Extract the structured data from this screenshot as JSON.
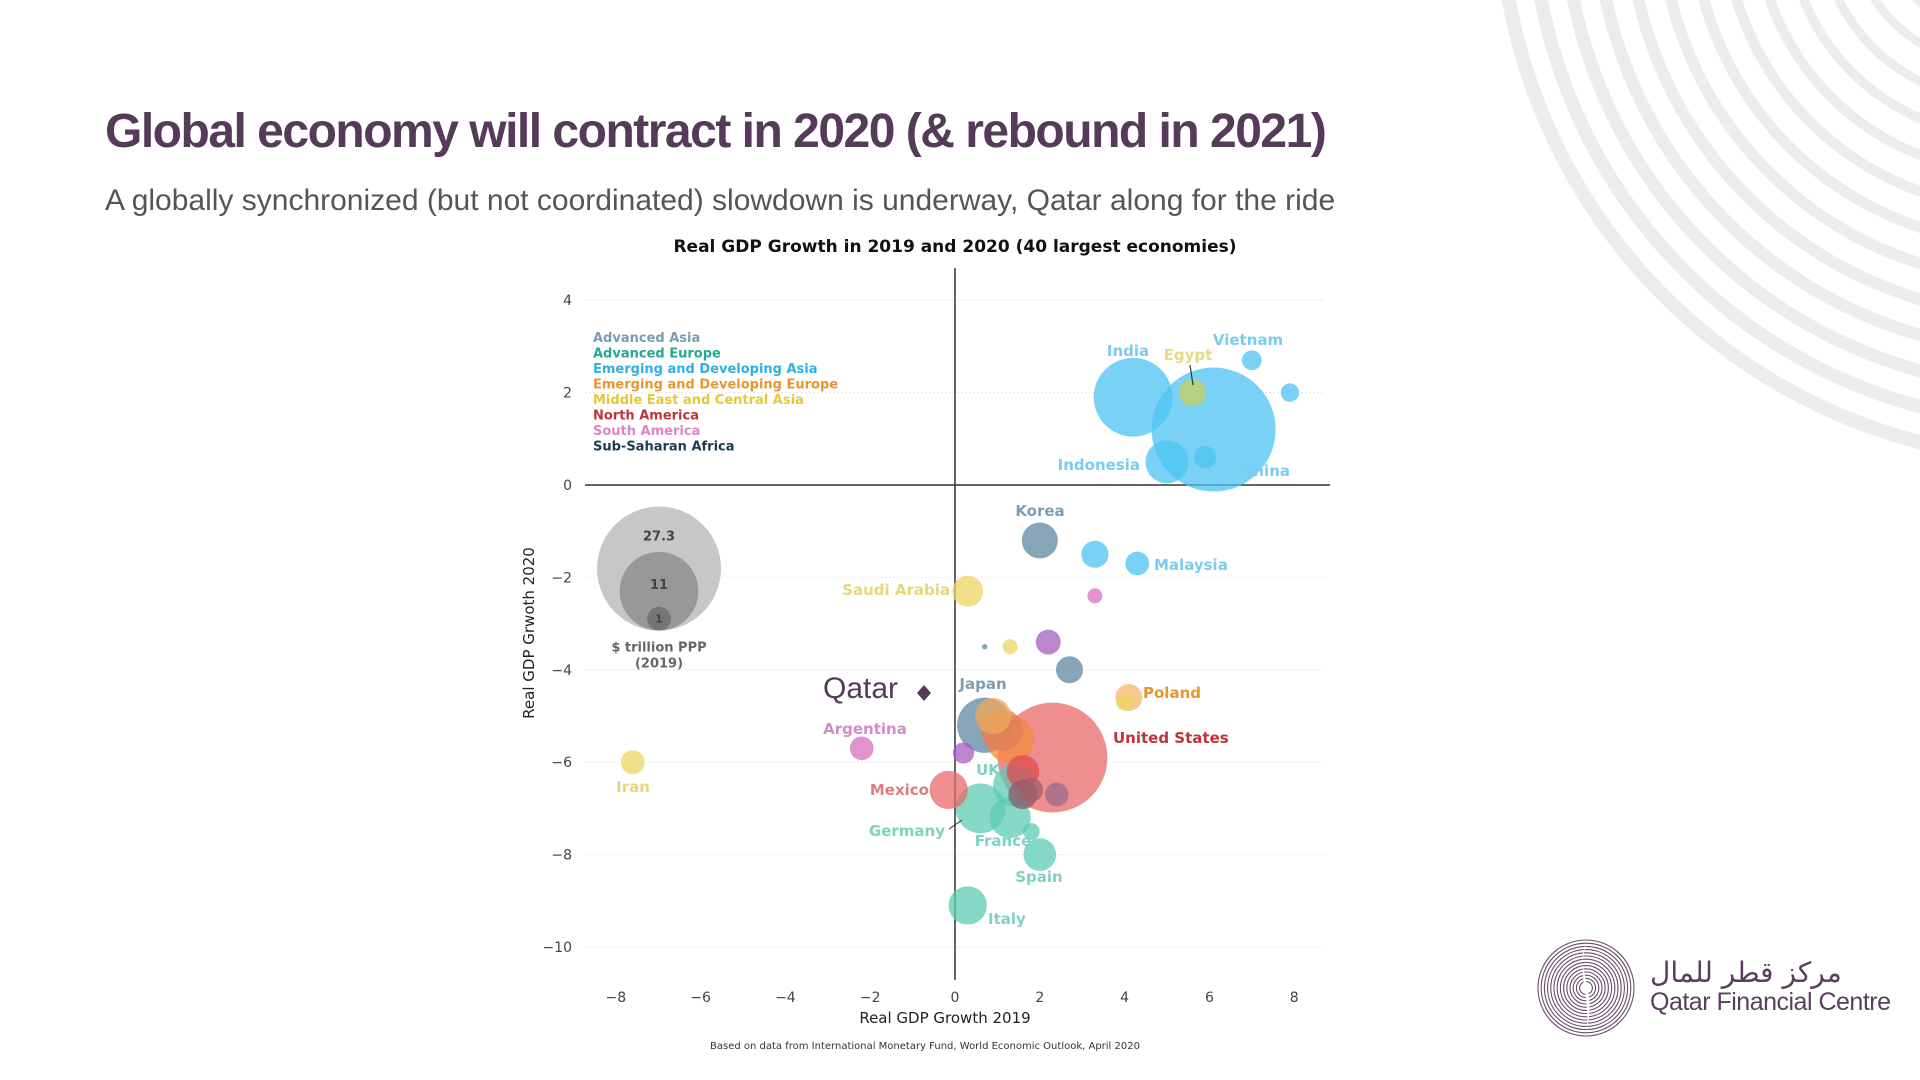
{
  "slide": {
    "title": "Global economy will contract in 2020 (& rebound in 2021)",
    "subtitle": "A globally synchronized (but not coordinated) slowdown is underway, Qatar along for the ride",
    "source": "Based on data from International Monetary Fund, World Economic Outlook, April 2020",
    "logo": {
      "arabic": "مركز قطر للمال",
      "english": "Qatar Financial Centre",
      "color": "#5a3e5d"
    }
  },
  "chart_data": {
    "type": "scatter",
    "title": "Real GDP Growth in 2019 and 2020 (40 largest economies)",
    "xlabel": "Real GDP Growth 2019",
    "ylabel": "Real GDP Grwoth 2020",
    "xlim": [
      -8.5,
      9
    ],
    "ylim": [
      -10.5,
      4.5
    ],
    "xticks": [
      -8,
      -6,
      -4,
      -2,
      0,
      2,
      4,
      6,
      8
    ],
    "yticks": [
      4,
      2,
      0,
      -2,
      -4,
      -6,
      -8,
      -10
    ],
    "tick_labels_x": [
      "−8",
      "−6",
      "−4",
      "−2",
      "0",
      "2",
      "4",
      "6",
      "8"
    ],
    "tick_labels_y": [
      "4",
      "2",
      "0",
      "−2",
      "−4",
      "−6",
      "−8",
      "−10"
    ],
    "grid": "horizontal dotted",
    "legend": {
      "placement": "top-left",
      "entries": [
        {
          "name": "Advanced Asia",
          "color": "#7b9bb0"
        },
        {
          "name": "Advanced Europe",
          "color": "#22a88f"
        },
        {
          "name": "Emerging and Developing Asia",
          "color": "#2fb0e0"
        },
        {
          "name": "Emerging and Developing Europe",
          "color": "#e8952e"
        },
        {
          "name": "Middle East and Central Asia",
          "color": "#e3c83a"
        },
        {
          "name": "North America",
          "color": "#c0333b"
        },
        {
          "name": "South America",
          "color": "#dc85c8"
        },
        {
          "name": "Sub-Saharan Africa",
          "color": "#1c3c4e"
        }
      ]
    },
    "size_legend": {
      "values": [
        27.3,
        11,
        1
      ],
      "labels": [
        "27.3",
        "11",
        "1"
      ],
      "caption_line1": "$ trillion PPP",
      "caption_line2": "(2019)"
    },
    "annotation": {
      "label": "Qatar",
      "x": -0.8,
      "y": -4.5,
      "marker": "diamond",
      "color": "#553a5a"
    },
    "points": [
      {
        "name": "China",
        "label": "China",
        "x": 6.1,
        "y": 1.2,
        "size": 27.3,
        "region": "Emerging and Developing Asia",
        "fill": "#4cc3f2"
      },
      {
        "name": "India",
        "label": "India",
        "x": 4.2,
        "y": 1.9,
        "size": 11,
        "region": "Emerging and Developing Asia",
        "fill": "#4cc3f2"
      },
      {
        "name": "Indonesia",
        "label": "Indonesia",
        "x": 5.0,
        "y": 0.5,
        "size": 3.3,
        "region": "Emerging and Developing Asia",
        "fill": "#4cc3f2"
      },
      {
        "name": "Vietnam",
        "label": "Vietnam",
        "x": 7.0,
        "y": 2.7,
        "size": 0.7,
        "region": "Emerging and Developing Asia",
        "fill": "#4cc3f2"
      },
      {
        "name": "Bangladesh",
        "label": "",
        "x": 7.9,
        "y": 2.0,
        "size": 0.6,
        "region": "Emerging and Developing Asia",
        "fill": "#4cc3f2"
      },
      {
        "name": "Philippines",
        "label": "",
        "x": 5.9,
        "y": 0.6,
        "size": 0.9,
        "region": "Emerging and Developing Asia",
        "fill": "#4cc3f2"
      },
      {
        "name": "Egypt",
        "label": "Egypt",
        "x": 5.6,
        "y": 2.0,
        "size": 1.3,
        "region": "Middle East and Central Asia",
        "fill": "#c9d05a"
      },
      {
        "name": "Korea",
        "label": "Korea",
        "x": 2.0,
        "y": -1.2,
        "size": 2.3,
        "region": "Advanced Asia",
        "fill": "#5e87a0"
      },
      {
        "name": "Thailand",
        "label": "",
        "x": 3.3,
        "y": -1.5,
        "size": 1.3,
        "region": "Emerging and Developing Asia",
        "fill": "#4cc3f2"
      },
      {
        "name": "Malaysia",
        "label": "Malaysia",
        "x": 4.3,
        "y": -1.7,
        "size": 1.0,
        "region": "Emerging and Developing Asia",
        "fill": "#4cc3f2"
      },
      {
        "name": "Saudi Arabia",
        "label": "Saudi Arabia",
        "x": 0.3,
        "y": -2.3,
        "size": 1.7,
        "region": "Middle East and Central Asia",
        "fill": "#ecd460"
      },
      {
        "name": "Colombia",
        "label": "",
        "x": 3.3,
        "y": -2.4,
        "size": 0.4,
        "region": "South America",
        "fill": "#d66fbd"
      },
      {
        "name": "Sub-Saharan small",
        "label": "",
        "x": 0.7,
        "y": -3.5,
        "size": 0.05,
        "region": "Sub-Saharan Africa",
        "fill": "#5e87a0"
      },
      {
        "name": "Iraq",
        "label": "",
        "x": 1.3,
        "y": -3.5,
        "size": 0.4,
        "region": "Middle East and Central Asia",
        "fill": "#ecd460"
      },
      {
        "name": "Nigeria",
        "label": "",
        "x": 2.2,
        "y": -3.4,
        "size": 1.1,
        "region": "Sub-Saharan Africa",
        "fill": "#a45cbf"
      },
      {
        "name": "Australia",
        "label": "",
        "x": 2.7,
        "y": -4.0,
        "size": 1.3,
        "region": "Advanced Asia",
        "fill": "#5e87a0"
      },
      {
        "name": "Poland",
        "label": "Poland",
        "x": 4.1,
        "y": -4.6,
        "size": 1.3,
        "region": "Emerging and Developing Europe",
        "fill": "#f7b46a"
      },
      {
        "name": "Kazakhstan",
        "label": "",
        "x": 4.0,
        "y": -4.7,
        "size": 0.5,
        "region": "Middle East and Central Asia",
        "fill": "#ecd460"
      },
      {
        "name": "Japan",
        "label": "Japan",
        "x": 0.7,
        "y": -5.2,
        "size": 5.4,
        "region": "Advanced Asia",
        "fill": "#5e87a0"
      },
      {
        "name": "Russia",
        "label": "",
        "x": 1.3,
        "y": -5.5,
        "size": 4.1,
        "region": "Emerging and Developing Europe",
        "fill": "#f28a3e"
      },
      {
        "name": "Turkey",
        "label": "",
        "x": 0.9,
        "y": -5.0,
        "size": 2.3,
        "region": "Emerging and Developing Europe",
        "fill": "#f0a85a"
      },
      {
        "name": "Brazil",
        "label": "",
        "x": 1.1,
        "y": -5.3,
        "size": 3.2,
        "region": "South America",
        "fill": "#e37f5a"
      },
      {
        "name": "South Africa",
        "label": "",
        "x": 0.2,
        "y": -5.8,
        "size": 0.8,
        "region": "Sub-Saharan Africa",
        "fill": "#a45cbf"
      },
      {
        "name": "United States",
        "label": "United States",
        "x": 2.3,
        "y": -5.9,
        "size": 21.4,
        "region": "North America",
        "fill": "#e8686a"
      },
      {
        "name": "Canada",
        "label": "",
        "x": 1.6,
        "y": -6.2,
        "size": 1.9,
        "region": "North America",
        "fill": "#e04a50"
      },
      {
        "name": "Argentina",
        "label": "Argentina",
        "x": -2.2,
        "y": -5.7,
        "size": 1.0,
        "region": "South America",
        "fill": "#d66fbd"
      },
      {
        "name": "Mexico",
        "label": "Mexico",
        "x": -0.15,
        "y": -6.6,
        "size": 2.6,
        "region": "North America",
        "fill": "#e8686a"
      },
      {
        "name": "UK",
        "label": "UK",
        "x": 1.4,
        "y": -6.5,
        "size": 3.2,
        "region": "Advanced Europe",
        "fill": "#5ccab3"
      },
      {
        "name": "Netherlands",
        "label": "",
        "x": 1.8,
        "y": -6.6,
        "size": 1.0,
        "region": "Advanced Europe",
        "fill": "#a45c68"
      },
      {
        "name": "Belgium",
        "label": "",
        "x": 1.6,
        "y": -6.7,
        "size": 1.5,
        "region": "Advanced Europe",
        "fill": "#8a5a6a"
      },
      {
        "name": "Switzerland",
        "label": "",
        "x": 2.4,
        "y": -6.7,
        "size": 1.0,
        "region": "Advanced Europe",
        "fill": "#9a6a8a"
      },
      {
        "name": "Germany",
        "label": "Germany",
        "x": 0.6,
        "y": -7.0,
        "size": 4.4,
        "region": "Advanced Europe",
        "fill": "#5ccab3"
      },
      {
        "name": "France",
        "label": "France",
        "x": 1.3,
        "y": -7.2,
        "size": 3.0,
        "region": "Advanced Europe",
        "fill": "#5ccab3"
      },
      {
        "name": "Austria",
        "label": "",
        "x": 1.8,
        "y": -7.5,
        "size": 0.5,
        "region": "Advanced Europe",
        "fill": "#5ccab3"
      },
      {
        "name": "Spain",
        "label": "Spain",
        "x": 2.0,
        "y": -8.0,
        "size": 1.9,
        "region": "Advanced Europe",
        "fill": "#5ccab3"
      },
      {
        "name": "Italy",
        "label": "Italy",
        "x": 0.3,
        "y": -9.1,
        "size": 2.6,
        "region": "Advanced Europe",
        "fill": "#5ccab3"
      },
      {
        "name": "Iran",
        "label": "Iran",
        "x": -7.6,
        "y": -6.0,
        "size": 1.0,
        "region": "Middle East and Central Asia",
        "fill": "#ecd460"
      }
    ]
  }
}
